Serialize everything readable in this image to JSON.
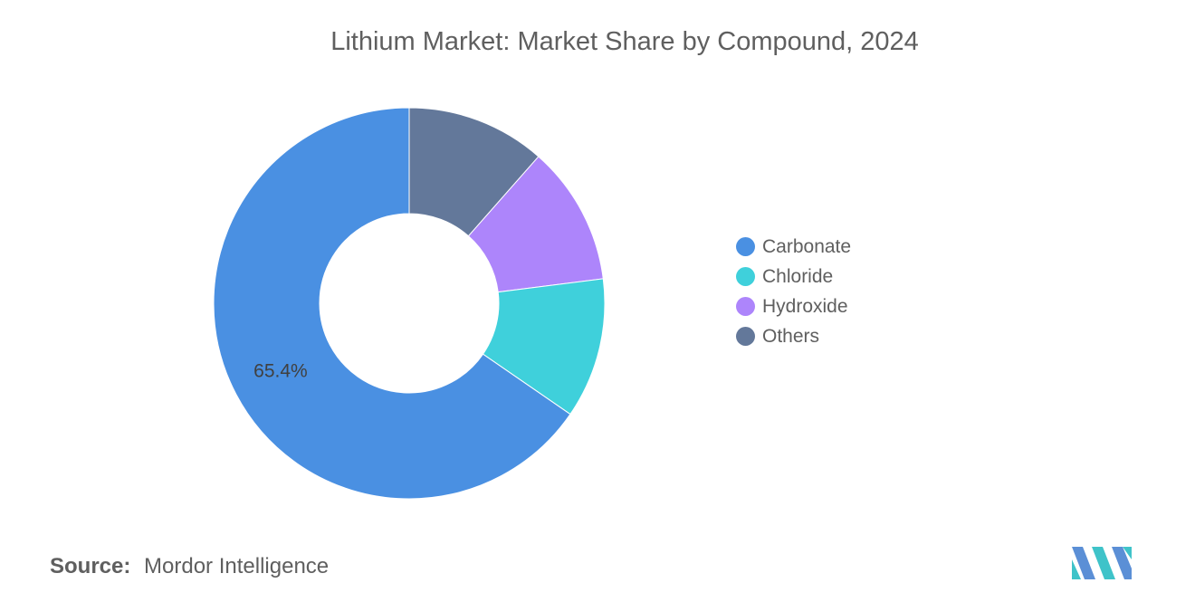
{
  "chart_data": {
    "type": "pie",
    "title": "Lithium Market: Market Share by Compound, 2024",
    "donut": true,
    "categories": [
      "Carbonate",
      "Chloride",
      "Hydroxide",
      "Others"
    ],
    "values": [
      65.4,
      11.6,
      11.5,
      11.5
    ],
    "colors": [
      "#4a90e2",
      "#3fd0db",
      "#ad85fb",
      "#63789a"
    ],
    "data_labels": [
      "65.4%",
      "",
      "",
      ""
    ],
    "legend_position": "right",
    "slice_order_clockwise_from_top": [
      "Others",
      "Hydroxide",
      "Chloride",
      "Carbonate"
    ]
  },
  "source": {
    "label": "Source:",
    "text": "Mordor Intelligence"
  },
  "logo": {
    "name": "mordor-intelligence-logo",
    "colors": [
      "#5b8fd6",
      "#3fc3c9"
    ]
  }
}
